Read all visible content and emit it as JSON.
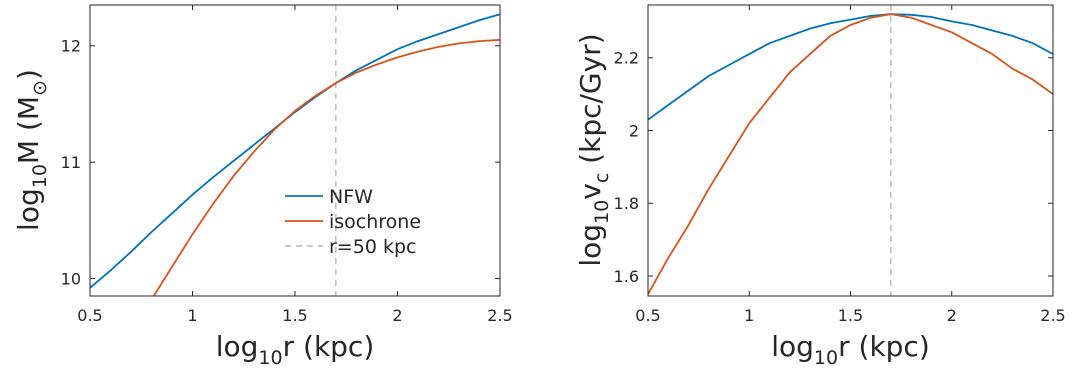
{
  "chart_data": [
    {
      "type": "line",
      "xlabel": {
        "base": "log",
        "sub": "10",
        "rest": "r (kpc)"
      },
      "ylabel": {
        "base": "log",
        "sub": "10",
        "mid": "M (M",
        "unit_sub": "⊙",
        "end": ")"
      },
      "xlim": [
        0.5,
        2.5
      ],
      "ylim": [
        9.85,
        12.35
      ],
      "xticks": [
        0.5,
        1,
        1.5,
        2,
        2.5
      ],
      "yticks": [
        10,
        11,
        12
      ],
      "xtick_labels": [
        "0.5",
        "1",
        "1.5",
        "2",
        "2.5"
      ],
      "ytick_labels": [
        "10",
        "11",
        "12"
      ],
      "grid": false,
      "legend": {
        "position": "bottom-right-inside",
        "entries": [
          {
            "label": "NFW",
            "series": 0
          },
          {
            "label": "isochrone",
            "series": 1
          },
          {
            "label": "r=50 kpc",
            "series": "vline"
          }
        ]
      },
      "vline": {
        "x": 1.699,
        "color": "#c0c0c0",
        "style": "dashed"
      },
      "series": [
        {
          "name": "NFW",
          "color": "#0072BD",
          "x": [
            0.5,
            0.6,
            0.7,
            0.8,
            0.9,
            1.0,
            1.1,
            1.2,
            1.3,
            1.4,
            1.5,
            1.6,
            1.7,
            1.8,
            1.9,
            2.0,
            2.1,
            2.2,
            2.3,
            2.4,
            2.5
          ],
          "y": [
            9.92,
            10.07,
            10.23,
            10.4,
            10.56,
            10.72,
            10.87,
            11.01,
            11.15,
            11.29,
            11.43,
            11.56,
            11.68,
            11.79,
            11.88,
            11.97,
            12.04,
            12.1,
            12.16,
            12.22,
            12.27
          ]
        },
        {
          "name": "isochrone",
          "color": "#D95319",
          "x": [
            0.8,
            0.9,
            1.0,
            1.1,
            1.2,
            1.3,
            1.4,
            1.5,
            1.6,
            1.7,
            1.8,
            1.9,
            2.0,
            2.1,
            2.2,
            2.3,
            2.4,
            2.5
          ],
          "y": [
            9.82,
            10.1,
            10.38,
            10.64,
            10.88,
            11.09,
            11.28,
            11.44,
            11.57,
            11.68,
            11.77,
            11.84,
            11.9,
            11.95,
            11.99,
            12.02,
            12.04,
            12.05
          ]
        }
      ]
    },
    {
      "type": "line",
      "xlabel": {
        "base": "log",
        "sub": "10",
        "rest": "r (kpc)"
      },
      "ylabel": {
        "base": "log",
        "sub": "10",
        "mid": "v",
        "unit_sub": "c",
        "end": " (kpc/Gyr)"
      },
      "xlim": [
        0.5,
        2.5
      ],
      "ylim": [
        1.545,
        2.345
      ],
      "xticks": [
        0.5,
        1,
        1.5,
        2,
        2.5
      ],
      "yticks": [
        1.6,
        1.8,
        2,
        2.2
      ],
      "xtick_labels": [
        "0.5",
        "1",
        "1.5",
        "2",
        "2.5"
      ],
      "ytick_labels": [
        "1.6",
        "1.8",
        "2",
        "2.2"
      ],
      "grid": false,
      "vline": {
        "x": 1.699,
        "color": "#c0c0c0",
        "style": "dashed"
      },
      "series": [
        {
          "name": "NFW",
          "color": "#0072BD",
          "x": [
            0.5,
            0.6,
            0.7,
            0.8,
            0.9,
            1.0,
            1.1,
            1.2,
            1.3,
            1.4,
            1.5,
            1.6,
            1.7,
            1.8,
            1.9,
            2.0,
            2.1,
            2.2,
            2.3,
            2.4,
            2.5
          ],
          "y": [
            2.03,
            2.07,
            2.11,
            2.15,
            2.18,
            2.21,
            2.24,
            2.26,
            2.28,
            2.295,
            2.305,
            2.315,
            2.32,
            2.318,
            2.312,
            2.3,
            2.29,
            2.275,
            2.26,
            2.24,
            2.21
          ]
        },
        {
          "name": "isochrone",
          "color": "#D95319",
          "x": [
            0.5,
            0.6,
            0.7,
            0.8,
            0.9,
            1.0,
            1.1,
            1.2,
            1.3,
            1.4,
            1.5,
            1.6,
            1.7,
            1.8,
            1.9,
            2.0,
            2.1,
            2.2,
            2.3,
            2.4,
            2.5
          ],
          "y": [
            1.55,
            1.65,
            1.74,
            1.84,
            1.93,
            2.02,
            2.09,
            2.16,
            2.21,
            2.26,
            2.29,
            2.31,
            2.32,
            2.31,
            2.29,
            2.27,
            2.24,
            2.21,
            2.17,
            2.14,
            2.1
          ]
        }
      ]
    }
  ]
}
